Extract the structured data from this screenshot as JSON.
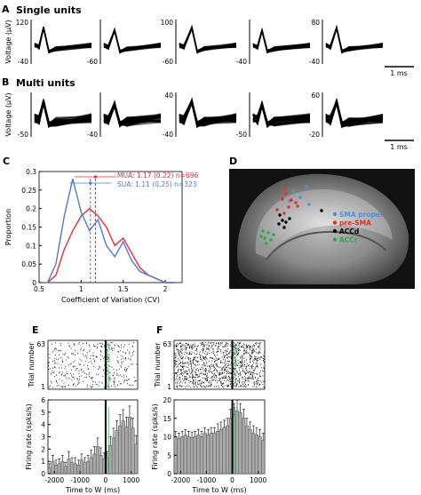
{
  "panel_letters": {
    "A": "A",
    "B": "B",
    "C": "C",
    "D": "D",
    "E": "E",
    "F": "F"
  },
  "row_titles": {
    "single": "Single units",
    "multi": "Multi units"
  },
  "voltage_label": "Voltage (μV)",
  "scalebar_label": "1 ms",
  "waveforms": {
    "single": [
      {
        "ytop": "120",
        "ybot": "-40"
      },
      {
        "ytop": "",
        "ybot": "-60"
      },
      {
        "ytop": "100",
        "ybot": "-60"
      },
      {
        "ytop": "",
        "ybot": "-40"
      },
      {
        "ytop": "80",
        "ybot": "-40"
      }
    ],
    "multi": [
      {
        "ytop": "",
        "ybot": "-50"
      },
      {
        "ytop": "",
        "ybot": "-40"
      },
      {
        "ytop": "40",
        "ybot": "-40"
      },
      {
        "ytop": "",
        "ybot": "-50"
      },
      {
        "ytop": "60",
        "ybot": "-20"
      }
    ]
  },
  "colors": {
    "mua": "#e0303a",
    "sua": "#5577cc",
    "sma_proper": "#4f8fdf",
    "pre_sma": "#e0302a",
    "accd": "#000000",
    "accr": "#2aa84a",
    "bar_fill": "#a9a9a9"
  },
  "brain": {
    "legend": [
      {
        "label": "SMA proper",
        "color": "#4f8fdf"
      },
      {
        "label": "pre-SMA",
        "color": "#e0302a"
      },
      {
        "label": "ACCd",
        "color": "#000000"
      },
      {
        "label": "ACCr",
        "color": "#2aa84a"
      }
    ]
  },
  "panelE_raster": {
    "ylabel": "Trial number",
    "yticks": [
      "63",
      "1"
    ]
  },
  "panelF_raster": {
    "ylabel": "Trial number",
    "yticks": [
      "63",
      "1"
    ]
  },
  "chart_data": [
    {
      "type": "line",
      "panel": "C",
      "xlabel": "Coefficient of Variation (CV)",
      "ylabel": "Proportion",
      "xlim": [
        0.5,
        2.2
      ],
      "ylim": [
        0,
        0.3
      ],
      "xticks": [
        "0.5",
        "1",
        "1.5",
        "2"
      ],
      "yticks": [
        "0",
        "0.05",
        "0.1",
        "0.15",
        "0.2",
        "0.25",
        "0.3"
      ],
      "x": [
        0.6,
        0.7,
        0.8,
        0.9,
        1.0,
        1.1,
        1.2,
        1.3,
        1.4,
        1.5,
        1.6,
        1.7,
        1.8,
        1.9,
        2.0,
        2.1
      ],
      "series": [
        {
          "name": "MUA",
          "label": "MUA: 1.17 (0.22) n=696",
          "mean": 1.17,
          "values": [
            0.0,
            0.02,
            0.09,
            0.14,
            0.18,
            0.2,
            0.18,
            0.15,
            0.1,
            0.12,
            0.08,
            0.04,
            0.02,
            0.01,
            0.0,
            0.0
          ]
        },
        {
          "name": "SUA",
          "label": "SUA: 1.11 (0.25) n=323",
          "mean": 1.11,
          "values": [
            0.0,
            0.05,
            0.18,
            0.28,
            0.19,
            0.14,
            0.17,
            0.1,
            0.07,
            0.11,
            0.06,
            0.03,
            0.02,
            0.01,
            0.0,
            0.0
          ]
        }
      ],
      "grid": false,
      "legend": "top-right"
    },
    {
      "type": "bar",
      "panel": "E",
      "xlabel": "Time to W (ms)",
      "ylabel": "Firing rate (spks/s)",
      "xlim": [
        -2250,
        1250
      ],
      "ylim": [
        0,
        6
      ],
      "xticks": [
        "-2000",
        "-1000",
        "0",
        "1000"
      ],
      "yticks": [
        "0",
        "1",
        "2",
        "3",
        "4",
        "5",
        "6"
      ],
      "bin_width": 125,
      "x": [
        -2187,
        -2062,
        -1937,
        -1812,
        -1687,
        -1562,
        -1437,
        -1312,
        -1187,
        -1062,
        -937,
        -812,
        -687,
        -562,
        -437,
        -312,
        -187,
        -62,
        62,
        187,
        312,
        437,
        562,
        687,
        812,
        937,
        1062,
        1187
      ],
      "values": [
        0.5,
        1.0,
        0.7,
        0.8,
        1.0,
        0.6,
        1.2,
        0.9,
        0.8,
        0.7,
        1.1,
        0.9,
        1.0,
        1.3,
        1.6,
        2.2,
        1.5,
        1.2,
        1.3,
        2.3,
        2.9,
        3.5,
        3.9,
        4.3,
        3.8,
        4.6,
        3.7,
        2.4
      ],
      "errors": [
        0.3,
        0.5,
        0.4,
        0.4,
        0.5,
        0.3,
        0.6,
        0.4,
        0.5,
        0.4,
        0.5,
        0.4,
        0.5,
        0.6,
        0.6,
        0.7,
        0.6,
        0.5,
        0.5,
        0.7,
        0.8,
        0.8,
        0.9,
        0.9,
        0.8,
        0.9,
        0.8,
        0.7
      ]
    },
    {
      "type": "bar",
      "panel": "F",
      "xlabel": "Time to W (ms)",
      "ylabel": "Firing rate (spks/s)",
      "xlim": [
        -2250,
        1250
      ],
      "ylim": [
        0,
        20
      ],
      "xticks": [
        "-2000",
        "-1000",
        "0",
        "1000"
      ],
      "yticks": [
        "0",
        "5",
        "10",
        "15",
        "20"
      ],
      "bin_width": 125,
      "x": [
        -2187,
        -2062,
        -1937,
        -1812,
        -1687,
        -1562,
        -1437,
        -1312,
        -1187,
        -1062,
        -937,
        -812,
        -687,
        -562,
        -437,
        -312,
        -187,
        -62,
        62,
        187,
        312,
        437,
        562,
        687,
        812,
        937,
        1062,
        1187
      ],
      "values": [
        10,
        9.5,
        10,
        10.5,
        10,
        9.8,
        10,
        10.5,
        10,
        11,
        10.5,
        11,
        11,
        11.5,
        12,
        12.5,
        13,
        15,
        16,
        17,
        16.5,
        15,
        13,
        12,
        11,
        10.5,
        10,
        9
      ],
      "errors": [
        1.5,
        1.5,
        1.5,
        1.5,
        1.5,
        1.5,
        1.5,
        1.5,
        1.5,
        1.5,
        1.5,
        1.5,
        1.5,
        2,
        2,
        2,
        2,
        2.5,
        3,
        3,
        2.5,
        2.5,
        2,
        2,
        2,
        2,
        2,
        2
      ]
    }
  ]
}
